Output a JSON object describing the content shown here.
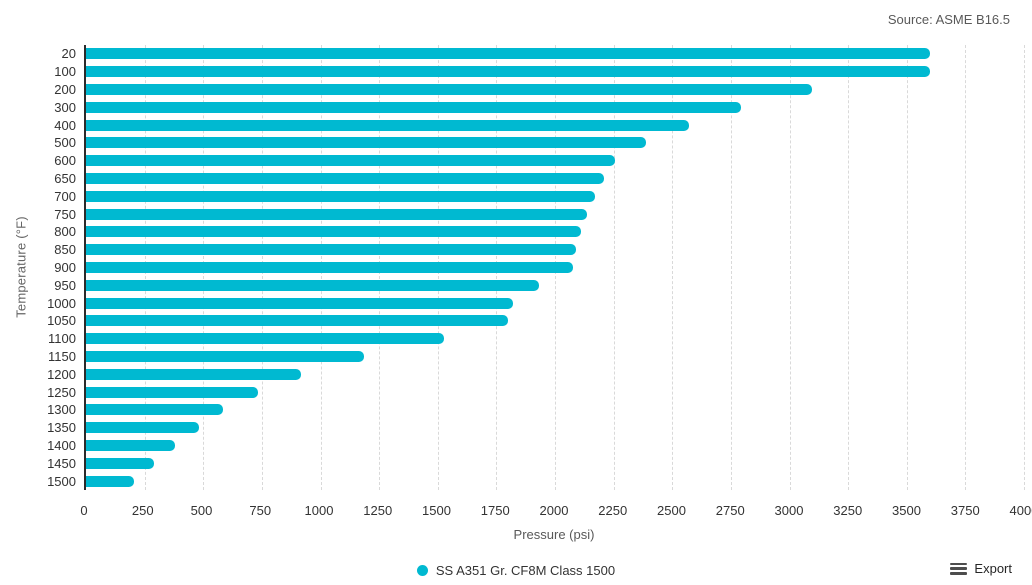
{
  "source_label": "Source: ASME B16.5",
  "legend": {
    "series_label": "SS A351 Gr. CF8M Class 1500",
    "marker_color": "#00b9d1"
  },
  "export": {
    "label": "Export"
  },
  "chart_data": {
    "type": "bar",
    "orientation": "horizontal",
    "title": "",
    "xlabel": "Pressure (psi)",
    "ylabel": "Temperature (°F)",
    "xlim": [
      0,
      4000
    ],
    "xtick_step": 250,
    "xticks": [
      "0",
      "250",
      "500",
      "750",
      "1000",
      "1250",
      "1500",
      "1750",
      "2000",
      "2250",
      "2500",
      "2750",
      "3000",
      "3250",
      "3500",
      "3750",
      "4000"
    ],
    "grid": "vertical-dashed",
    "legend_position": "bottom-center",
    "bar_color": "#00b9d1",
    "categories": [
      "20",
      "100",
      "200",
      "300",
      "400",
      "500",
      "600",
      "650",
      "700",
      "750",
      "800",
      "850",
      "900",
      "950",
      "1000",
      "1050",
      "1100",
      "1150",
      "1200",
      "1250",
      "1300",
      "1350",
      "1400",
      "1450",
      "1500"
    ],
    "values": [
      3600,
      3600,
      3095,
      2795,
      2570,
      2390,
      2255,
      2210,
      2170,
      2135,
      2110,
      2090,
      2075,
      1930,
      1820,
      1800,
      1525,
      1185,
      915,
      735,
      585,
      480,
      380,
      290,
      205
    ],
    "series": [
      {
        "name": "SS A351 Gr. CF8M Class 1500",
        "values": [
          3600,
          3600,
          3095,
          2795,
          2570,
          2390,
          2255,
          2210,
          2170,
          2135,
          2110,
          2090,
          2075,
          1930,
          1820,
          1800,
          1525,
          1185,
          915,
          735,
          585,
          480,
          380,
          290,
          205
        ]
      }
    ]
  }
}
